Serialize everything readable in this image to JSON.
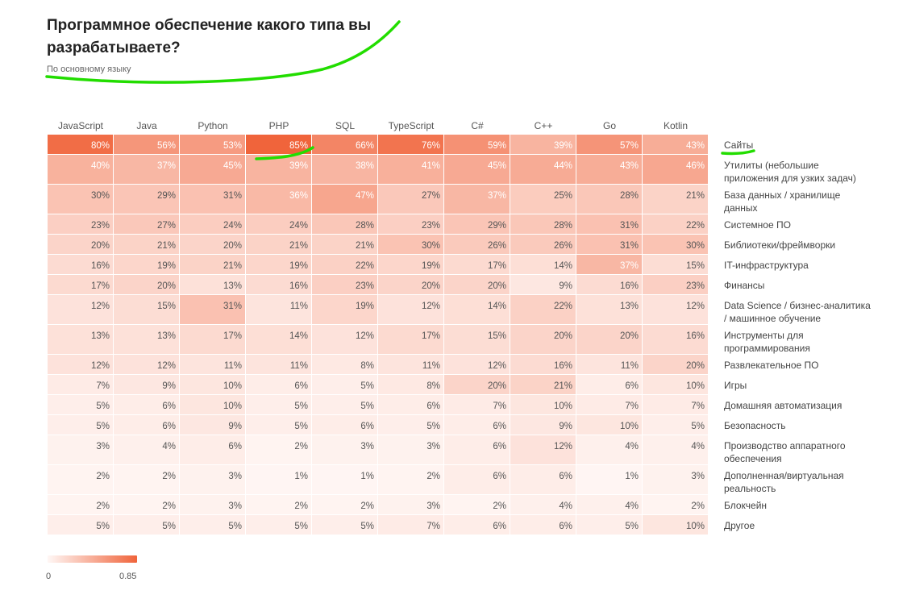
{
  "colors": {
    "scale_low": "#fff7f5",
    "scale_high": "#f0643b",
    "annotation": "#22dd00"
  },
  "chart_data": {
    "type": "heatmap",
    "title": "Программное обеспечение какого типа вы разрабатываете?",
    "subtitle": "По основному языку",
    "columns": [
      "JavaScript",
      "Java",
      "Python",
      "PHP",
      "SQL",
      "TypeScript",
      "C#",
      "C++",
      "Go",
      "Kotlin"
    ],
    "rows": [
      {
        "label": [
          "Сайты"
        ],
        "values": [
          80,
          56,
          53,
          85,
          66,
          76,
          59,
          39,
          57,
          43
        ]
      },
      {
        "label": [
          "Утилиты (небольшие",
          "приложения для узких задач)"
        ],
        "values": [
          40,
          37,
          45,
          39,
          38,
          41,
          45,
          44,
          43,
          46
        ]
      },
      {
        "label": [
          "База данных / хранилище",
          "данных"
        ],
        "values": [
          30,
          29,
          31,
          36,
          47,
          27,
          37,
          25,
          28,
          21
        ]
      },
      {
        "label": [
          "Системное ПО"
        ],
        "values": [
          23,
          27,
          24,
          24,
          28,
          23,
          29,
          28,
          31,
          22
        ]
      },
      {
        "label": [
          "Библиотеки/фреймворки"
        ],
        "values": [
          20,
          21,
          20,
          21,
          21,
          30,
          26,
          26,
          31,
          30
        ]
      },
      {
        "label": [
          "IT-инфраструктура"
        ],
        "values": [
          16,
          19,
          21,
          19,
          22,
          19,
          17,
          14,
          37,
          15
        ]
      },
      {
        "label": [
          "Финансы"
        ],
        "values": [
          17,
          20,
          13,
          16,
          23,
          20,
          20,
          9,
          16,
          23
        ]
      },
      {
        "label": [
          "Data Science / бизнес-аналитика",
          "/ машинное обучение"
        ],
        "values": [
          12,
          15,
          31,
          11,
          19,
          12,
          14,
          22,
          13,
          12
        ]
      },
      {
        "label": [
          "Инструменты для",
          "программирования"
        ],
        "values": [
          13,
          13,
          17,
          14,
          12,
          17,
          15,
          20,
          20,
          16
        ]
      },
      {
        "label": [
          "Развлекательное ПО"
        ],
        "values": [
          12,
          12,
          11,
          11,
          8,
          11,
          12,
          16,
          11,
          20
        ]
      },
      {
        "label": [
          "Игры"
        ],
        "values": [
          7,
          9,
          10,
          6,
          5,
          8,
          20,
          21,
          6,
          10
        ]
      },
      {
        "label": [
          "Домашняя автоматизация"
        ],
        "values": [
          5,
          6,
          10,
          5,
          5,
          6,
          7,
          10,
          7,
          7
        ]
      },
      {
        "label": [
          "Безопасность"
        ],
        "values": [
          5,
          6,
          9,
          5,
          6,
          5,
          6,
          9,
          10,
          5
        ]
      },
      {
        "label": [
          "Производство аппаратного",
          "обеспечения"
        ],
        "values": [
          3,
          4,
          6,
          2,
          3,
          3,
          6,
          12,
          4,
          4
        ]
      },
      {
        "label": [
          "Дополненная/виртуальная",
          "реальность"
        ],
        "values": [
          2,
          2,
          3,
          1,
          1,
          2,
          6,
          6,
          1,
          3
        ]
      },
      {
        "label": [
          "Блокчейн"
        ],
        "values": [
          2,
          2,
          3,
          2,
          2,
          3,
          2,
          4,
          4,
          2
        ]
      },
      {
        "label": [
          "Другое"
        ],
        "values": [
          5,
          5,
          5,
          5,
          5,
          7,
          6,
          6,
          5,
          10
        ]
      }
    ],
    "value_suffix": "%",
    "color_range": [
      0,
      0.85
    ],
    "legend": {
      "min_label": "0",
      "max_label": "0.85",
      "placement": "bottom-left"
    }
  }
}
